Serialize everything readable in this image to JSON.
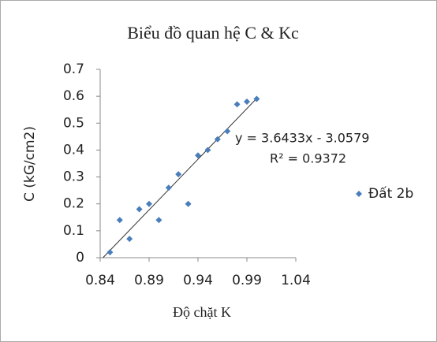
{
  "chart_data": {
    "type": "scatter",
    "title": "Biểu đồ quan hệ C & Kc",
    "x_label": "Độ chặt K",
    "y_label": "C (kG/cm2)",
    "series": [
      {
        "name": "Đất 2b",
        "color": "#4a7ebb",
        "x": [
          0.85,
          0.86,
          0.87,
          0.88,
          0.89,
          0.9,
          0.91,
          0.92,
          0.93,
          0.94,
          0.95,
          0.96,
          0.97,
          0.98,
          0.99,
          1.0
        ],
        "values": [
          0.02,
          0.14,
          0.07,
          0.18,
          0.2,
          0.14,
          0.26,
          0.31,
          0.2,
          0.38,
          0.4,
          0.44,
          0.47,
          0.57,
          0.58,
          0.59
        ]
      }
    ],
    "annotations": [
      "y = 3.6433x - 3.0579",
      "R² = 0.9372"
    ],
    "xlim": [
      0.84,
      1.04
    ],
    "xticks": [
      0.84,
      0.89,
      0.94,
      0.99,
      1.04
    ],
    "ylim": [
      0,
      0.7
    ],
    "yticks": [
      0,
      0.1,
      0.2,
      0.3,
      0.4,
      0.5,
      0.6,
      0.7
    ],
    "legend": "right"
  }
}
